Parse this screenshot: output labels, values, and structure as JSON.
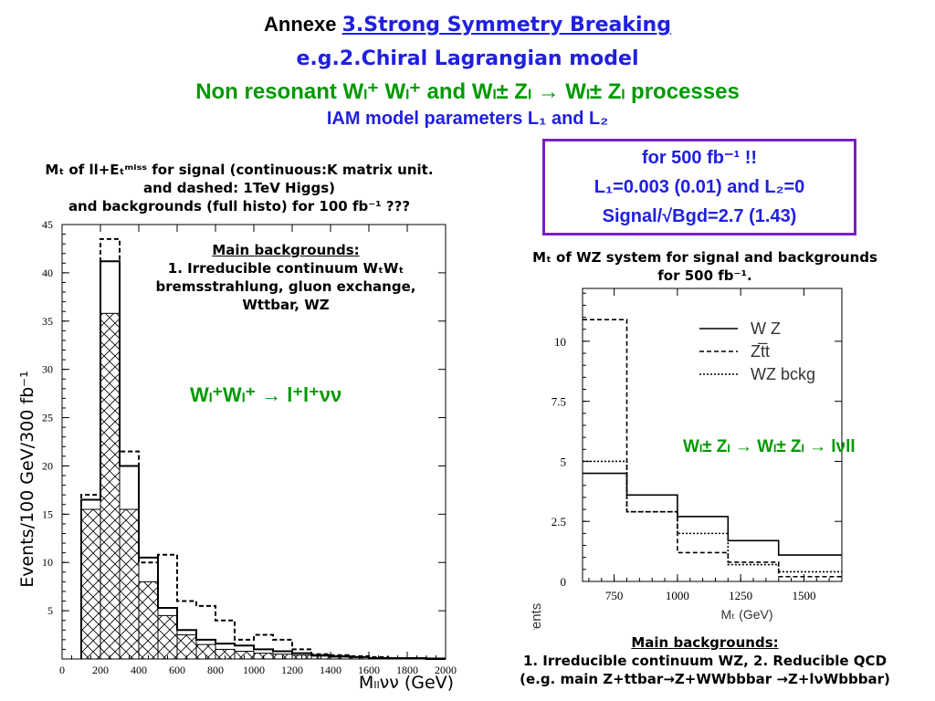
{
  "header": {
    "line1_prefix": "Annexe ",
    "line1_link": "3.Strong Symmetry Breaking",
    "line2": "e.g.2.Chiral Lagrangian model",
    "line3": "Non resonant Wₗ⁺ Wₗ⁺ and Wₗ± Zₗ → Wₗ± Zₗ processes",
    "line4": "IAM model parameters L₁ and L₂"
  },
  "info_box": {
    "line1": "for 500 fb⁻¹ !!",
    "line2": "L₁=0.003 (0.01) and L₂=0",
    "line3": "Signal/√Bgd=2.7 (1.43)"
  },
  "left_caption": {
    "line1": "Mₜ of ll+Eₜᵐⁱˢˢ for signal (continuous:K matrix unit.",
    "line2": "and dashed: 1TeV Higgs)",
    "line3": "and backgrounds (full histo) for 100 fb⁻¹ ???"
  },
  "left_backgrounds": {
    "title": "Main backgrounds:",
    "line1": "1. Irreducible continuum WₜWₜ",
    "line2": "bremsstrahlung, gluon exchange,",
    "line3": "Wttbar, WZ"
  },
  "left_process": "Wₗ⁺Wₗ⁺ → l⁺l⁺νν",
  "right_caption": {
    "line1": "Mₜ of WZ system for signal and backgrounds",
    "line2": "for 500 fb⁻¹."
  },
  "right_process": "Wₗ± Zₗ → Wₗ± Zₗ → lνll",
  "right_backgrounds": {
    "title": "Main backgrounds:",
    "line1": "1. Irreducible continuum WZ, 2. Reducible QCD",
    "line2": "(e.g. main Z+ttbar→Z+WWbbbar →Z+lνWbbbar)"
  },
  "colors": {
    "blue": "#2020e0",
    "green": "#009900",
    "purple": "#7b1fc4"
  },
  "chart_data": [
    {
      "type": "bar",
      "xlabel": "Mₗₗνν (GeV)",
      "ylabel": "Events/100 GeV/300 fb⁻¹",
      "xlim": [
        0,
        2000
      ],
      "ylim": [
        0,
        45
      ],
      "xticks": [
        0,
        200,
        400,
        600,
        800,
        1000,
        1200,
        1400,
        1600,
        1800,
        2000
      ],
      "yticks": [
        5,
        10,
        15,
        20,
        25,
        30,
        35,
        40,
        45
      ],
      "bin_edges": [
        100,
        200,
        300,
        400,
        500,
        600,
        700,
        800,
        900,
        1000,
        1100,
        1200,
        1300,
        1400,
        1500,
        1600,
        1700,
        1800,
        1900,
        2000
      ],
      "series": [
        {
          "values": [
            15.5,
            35.8,
            15.5,
            8.0,
            4.5,
            2.5,
            1.5,
            1.0,
            0.8,
            0.6,
            0.5,
            0.4,
            0.3,
            0.2,
            0.2,
            0.1,
            0.1,
            0.1,
            0.1
          ]
        },
        {
          "values": [
            16.5,
            41.2,
            20.0,
            10.5,
            5.3,
            3.0,
            2.0,
            1.6,
            1.4,
            1.0,
            0.8,
            0.6,
            0.4,
            0.3,
            0.2,
            0.1,
            0.1,
            0.1,
            0.0
          ]
        },
        {
          "values": [
            17.0,
            43.5,
            21.5,
            10.0,
            10.8,
            6.0,
            5.5,
            4.0,
            2.0,
            2.5,
            2.0,
            1.0,
            0.5,
            0.4,
            0.3,
            0.2,
            0.1,
            0.1,
            0.0
          ]
        }
      ]
    },
    {
      "type": "line",
      "xlabel": "Mₜ (GeV)",
      "ylabel": "Number of events",
      "xlim": [
        625,
        1650
      ],
      "ylim": [
        0,
        12.2
      ],
      "xticks": [
        750,
        1000,
        1250,
        1500
      ],
      "yticks": [
        0,
        2.5,
        5,
        7.5,
        10
      ],
      "bin_edges": [
        625,
        800,
        1000,
        1200,
        1400,
        1650
      ],
      "legend": [
        "W Z",
        "Zt̅t",
        "WZ bckg"
      ],
      "series": [
        {
          "name": "W Z",
          "values": [
            4.5,
            3.6,
            2.7,
            1.7,
            1.1
          ]
        },
        {
          "name": "Zt̅t",
          "values": [
            10.9,
            2.9,
            1.2,
            0.8,
            0.2
          ]
        },
        {
          "name": "WZ bckg",
          "values": [
            5.0,
            2.9,
            2.0,
            0.7,
            0.4
          ]
        }
      ]
    }
  ]
}
